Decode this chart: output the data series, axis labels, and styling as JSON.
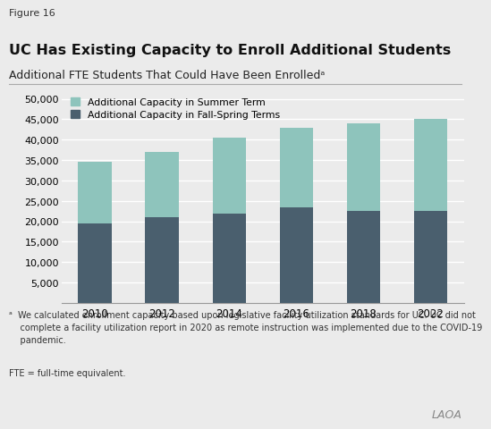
{
  "years": [
    "2010",
    "2012",
    "2014",
    "2016",
    "2018",
    "2022"
  ],
  "fall_spring": [
    19500,
    21000,
    22000,
    23500,
    22500,
    22500
  ],
  "summer": [
    15000,
    16000,
    18500,
    19500,
    21500,
    22500
  ],
  "fall_spring_color": "#4a5f6e",
  "summer_color": "#8ec4bc",
  "background_color": "#ebebeb",
  "figure_label": "Figure 16",
  "title": "UC Has Existing Capacity to Enroll Additional Students",
  "subtitle": "Additional FTE Students That Could Have Been Enrolledᵃ",
  "legend_summer": "Additional Capacity in Summer Term",
  "legend_fall_spring": "Additional Capacity in Fall-Spring Terms",
  "ylim": [
    0,
    52000
  ],
  "yticks": [
    5000,
    10000,
    15000,
    20000,
    25000,
    30000,
    35000,
    40000,
    45000,
    50000
  ],
  "footnote_a": "ᵃ  We calculated enrollment capacity based upon legislative facility utilization standards for UC. UC did not\n    complete a facility utilization report in 2020 as remote instruction was implemented due to the COVID-19\n    pandemic.",
  "footnote_fte": "FTE = full-time equivalent.",
  "logo": "LAOA"
}
